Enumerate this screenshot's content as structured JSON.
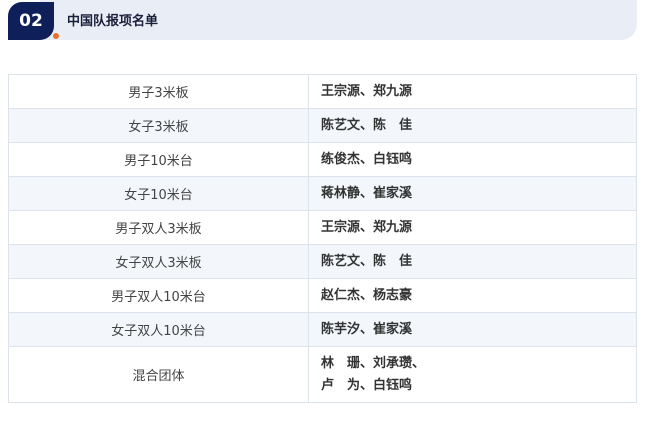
{
  "header": {
    "number": "02",
    "title": "中国队报项名单",
    "accent": "#e8702a",
    "badge_color": "#0f1f5a"
  },
  "rows": [
    {
      "event": "男子3米板",
      "athletes": "王宗源、郑九源"
    },
    {
      "event": "女子3米板",
      "athletes": "陈艺文、陈　佳"
    },
    {
      "event": "男子10米台",
      "athletes": "练俊杰、白钰鸣"
    },
    {
      "event": "女子10米台",
      "athletes": "蒋林静、崔家溪"
    },
    {
      "event": "男子双人3米板",
      "athletes": "王宗源、郑九源"
    },
    {
      "event": "女子双人3米板",
      "athletes": "陈艺文、陈　佳"
    },
    {
      "event": "男子双人10米台",
      "athletes": "赵仁杰、杨志豪"
    },
    {
      "event": "女子双人10米台",
      "athletes": "陈芋汐、崔家溪"
    },
    {
      "event": "混合团体",
      "athletes": "林　珊、刘承瓒、",
      "athletes_line2": "卢　为、白钰鸣"
    }
  ]
}
